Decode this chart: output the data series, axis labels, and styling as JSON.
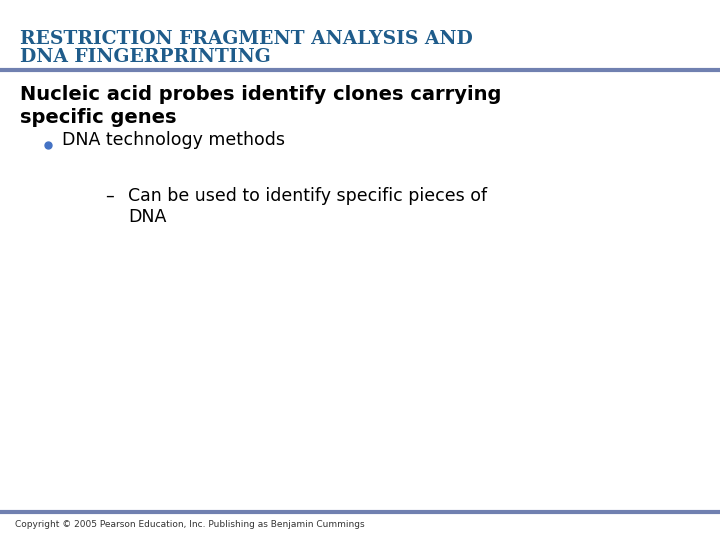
{
  "title_line1": "RESTRICTION FRAGMENT ANALYSIS AND",
  "title_line2": "DNA FINGERPRINTING",
  "title_color": "#1F5C8B",
  "divider_color": "#7080B0",
  "subtitle_line1": "Nucleic acid probes identify clones carrying",
  "subtitle_line2": "specific genes",
  "subtitle_color": "#000000",
  "bullet_text": "DNA technology methods",
  "bullet_color": "#4472C4",
  "sub_dash": "–",
  "sub_bullet_line1": "Can be used to identify specific pieces of",
  "sub_bullet_line2": "DNA",
  "sub_bullet_color": "#000000",
  "copyright": "Copyright © 2005 Pearson Education, Inc. Publishing as Benjamin Cummings",
  "copyright_color": "#333333",
  "bg_color": "#FFFFFF",
  "title_fontsize": 13.5,
  "subtitle_fontsize": 14,
  "body_fontsize": 12.5,
  "copyright_fontsize": 6.5
}
